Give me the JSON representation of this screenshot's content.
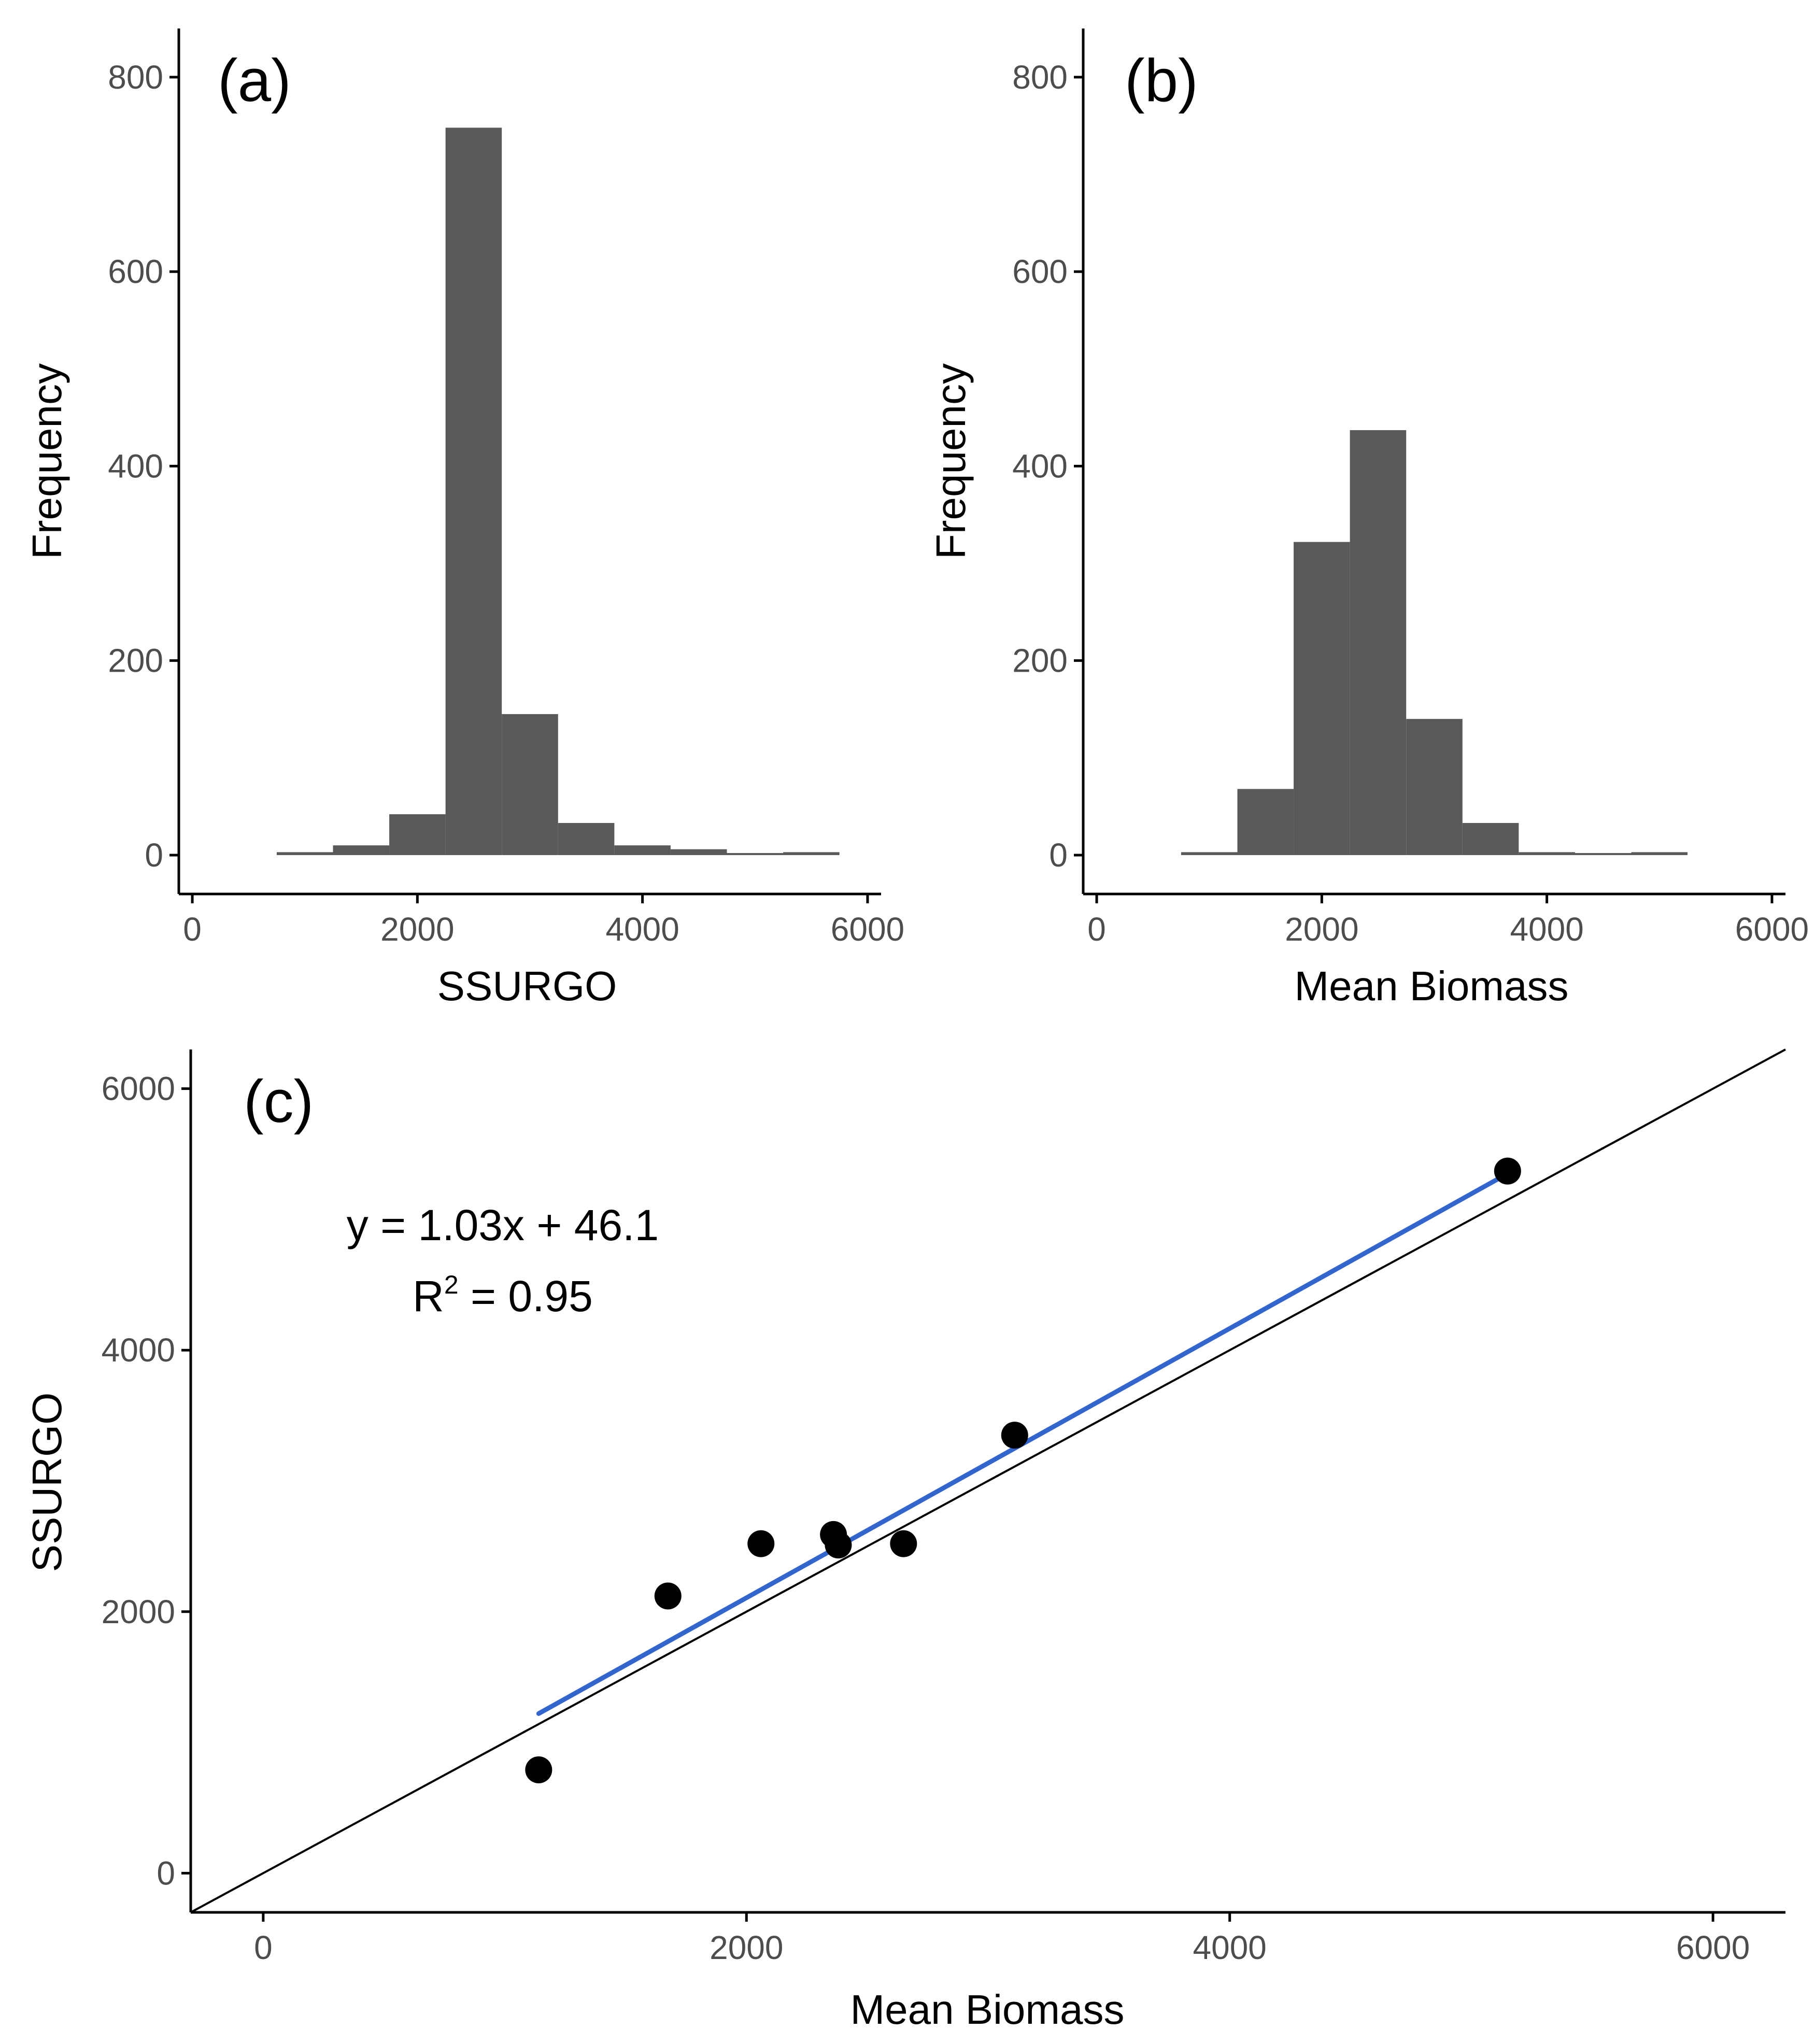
{
  "colors": {
    "bar_fill": "#595959",
    "axis": "#000000",
    "tick_text": "#4d4d4d",
    "fit_line": "#3366cc",
    "identity_line": "#000000",
    "point": "#000000"
  },
  "chart_data": [
    {
      "id": "a",
      "type": "bar",
      "panel_label": "(a)",
      "title": "",
      "xlabel": "SSURGO",
      "ylabel": "Frequency",
      "xlim": [
        -120,
        6120
      ],
      "ylim": [
        -40,
        850
      ],
      "x_ticks": [
        0,
        2000,
        4000,
        6000
      ],
      "y_ticks": [
        0,
        200,
        400,
        600,
        800
      ],
      "x_tick_labels": [
        "0",
        "2000",
        "4000",
        "6000"
      ],
      "y_tick_labels": [
        "0",
        "200",
        "400",
        "600",
        "800"
      ],
      "grid": false,
      "bin_width": 500,
      "bins": [
        {
          "x0": 750,
          "x1": 1250,
          "count": 3
        },
        {
          "x0": 1250,
          "x1": 1750,
          "count": 10
        },
        {
          "x0": 1750,
          "x1": 2250,
          "count": 42
        },
        {
          "x0": 2250,
          "x1": 2750,
          "count": 748
        },
        {
          "x0": 2750,
          "x1": 3250,
          "count": 145
        },
        {
          "x0": 3250,
          "x1": 3750,
          "count": 33
        },
        {
          "x0": 3750,
          "x1": 4250,
          "count": 10
        },
        {
          "x0": 4250,
          "x1": 4750,
          "count": 6
        },
        {
          "x0": 4750,
          "x1": 5250,
          "count": 0
        },
        {
          "x0": 5250,
          "x1": 5750,
          "count": 3
        }
      ]
    },
    {
      "id": "b",
      "type": "bar",
      "panel_label": "(b)",
      "title": "",
      "xlabel": "Mean Biomass",
      "ylabel": "Frequency",
      "xlim": [
        -120,
        6120
      ],
      "ylim": [
        -40,
        850
      ],
      "x_ticks": [
        0,
        2000,
        4000,
        6000
      ],
      "y_ticks": [
        0,
        200,
        400,
        600,
        800
      ],
      "x_tick_labels": [
        "0",
        "2000",
        "4000",
        "6000"
      ],
      "y_tick_labels": [
        "0",
        "200",
        "400",
        "600",
        "800"
      ],
      "grid": false,
      "bin_width": 500,
      "bins": [
        {
          "x0": 750,
          "x1": 1250,
          "count": 3
        },
        {
          "x0": 1250,
          "x1": 1750,
          "count": 68
        },
        {
          "x0": 1750,
          "x1": 2250,
          "count": 322
        },
        {
          "x0": 2250,
          "x1": 2750,
          "count": 437
        },
        {
          "x0": 2750,
          "x1": 3250,
          "count": 140
        },
        {
          "x0": 3250,
          "x1": 3750,
          "count": 33
        },
        {
          "x0": 3750,
          "x1": 4250,
          "count": 3
        },
        {
          "x0": 4250,
          "x1": 4750,
          "count": 0
        },
        {
          "x0": 4750,
          "x1": 5250,
          "count": 3
        }
      ]
    },
    {
      "id": "c",
      "type": "scatter",
      "panel_label": "(c)",
      "title": "",
      "xlabel": "Mean Biomass",
      "ylabel": "SSURGO",
      "xlim": [
        -300,
        6300
      ],
      "ylim": [
        -300,
        6300
      ],
      "x_ticks": [
        0,
        2000,
        4000,
        6000
      ],
      "y_ticks": [
        0,
        2000,
        4000,
        6000
      ],
      "x_tick_labels": [
        "0",
        "2000",
        "4000",
        "6000"
      ],
      "y_tick_labels": [
        "0",
        "2000",
        "4000",
        "6000"
      ],
      "grid": false,
      "points": [
        {
          "x": 1140,
          "y": 790
        },
        {
          "x": 1675,
          "y": 2120
        },
        {
          "x": 2060,
          "y": 2520
        },
        {
          "x": 2360,
          "y": 2590
        },
        {
          "x": 2380,
          "y": 2510
        },
        {
          "x": 2650,
          "y": 2520
        },
        {
          "x": 3110,
          "y": 3350
        },
        {
          "x": 5150,
          "y": 5370
        }
      ],
      "fit_line": {
        "slope": 1.03,
        "intercept": 46.1,
        "x_from": 1140,
        "x_to": 5150,
        "name": "linear fit"
      },
      "identity_line": {
        "slope": 1,
        "intercept": 0,
        "name": "1:1 line"
      },
      "annotation": {
        "equation": "y = 1.03x + 46.1",
        "r2_prefix": "R",
        "r2_sup": "2",
        "r2_suffix": " = 0.95"
      }
    }
  ]
}
